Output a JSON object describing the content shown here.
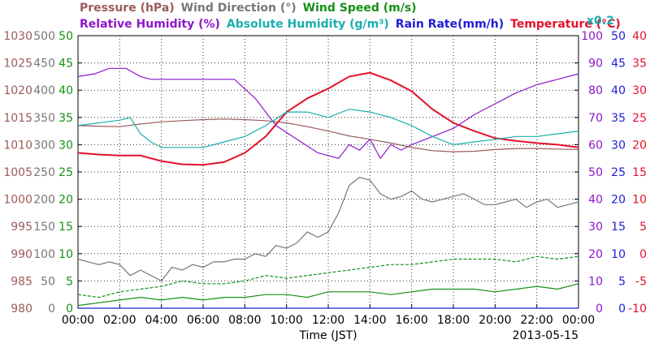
{
  "chart_data": {
    "type": "line",
    "date": "2013-05-15",
    "xlabel": "Time (JST)",
    "xlim": [
      "00:00",
      "24:00"
    ],
    "x_ticks": [
      "00:00",
      "02:00",
      "04:00",
      "06:00",
      "08:00",
      "10:00",
      "12:00",
      "14:00",
      "16:00",
      "18:00",
      "20:00",
      "22:00",
      "00:00"
    ],
    "grid": true,
    "grid_style": "dotted",
    "legend_placement": "top",
    "axes": [
      {
        "id": "pressure",
        "label": "Pressure (hPa)",
        "side": "left",
        "color": "#9b5c5c",
        "ticks": [
          "1030",
          "1025",
          "1020",
          "1015",
          "1010",
          "1005",
          "1000",
          "995",
          "990",
          "985",
          "980"
        ],
        "ylim": [
          980,
          1030
        ]
      },
      {
        "id": "wind_direction",
        "label": "Wind Direction (°)",
        "side": "left",
        "color": "#777777",
        "ticks": [
          "500",
          "450",
          "400",
          "350",
          "300",
          "250",
          "200",
          "150",
          "100",
          "50",
          "0"
        ],
        "ylim": [
          0,
          500
        ]
      },
      {
        "id": "wind_speed",
        "label": "Wind Speed (m/s)",
        "side": "left",
        "color": "#169016",
        "ticks": [
          "50",
          "45",
          "40",
          "35",
          "30",
          "25",
          "20",
          "15",
          "10",
          "5",
          "0"
        ],
        "ylim": [
          0,
          50
        ]
      },
      {
        "id": "relative_humidity",
        "label": "Relative Humidity (%)",
        "side": "right",
        "color": "#8f16c9",
        "ticks": [
          "100",
          "90",
          "80",
          "70",
          "60",
          "50",
          "40",
          "30",
          "20",
          "10",
          "0"
        ],
        "ylim": [
          0,
          100
        ]
      },
      {
        "id": "absolute_humidity",
        "label": "Absolute Humidity (g/m³)",
        "side": "right",
        "color": "#1aaeae",
        "ticks": [
          "x0.2"
        ],
        "scale_note": "x0.2"
      },
      {
        "id": "rain_rate",
        "label": "Rain Rate(mm/h)",
        "side": "right",
        "color": "#1d1dd6",
        "ticks": [
          "50",
          "45",
          "40",
          "35",
          "30",
          "25",
          "20",
          "15",
          "10",
          "5",
          "0"
        ],
        "ylim": [
          0,
          50
        ]
      },
      {
        "id": "temperature",
        "label": "Temperature (°C)",
        "side": "right",
        "color": "#e5102d",
        "ticks": [
          "40",
          "35",
          "30",
          "25",
          "20",
          "15",
          "10",
          "5",
          "0",
          "-5",
          "-10"
        ],
        "ylim": [
          -10,
          40
        ]
      }
    ],
    "legend_row1": [
      {
        "text": "Pressure (hPa)",
        "color": "#9b5c5c"
      },
      {
        "text": "Wind Direction (°)",
        "color": "#777777"
      },
      {
        "text": "Wind Speed (m/s)",
        "color": "#169016"
      }
    ],
    "legend_row2": [
      {
        "text": "Relative Humidity (%)",
        "color": "#8f16c9"
      },
      {
        "text": "Absolute Humidity (g/m³)",
        "color": "#1aaeae"
      },
      {
        "text": "Rain Rate(mm/h)",
        "color": "#1d1dd6"
      },
      {
        "text": "Temperature (°C)",
        "color": "#e5102d"
      }
    ],
    "series": [
      {
        "id": "temperature",
        "color": "#e5102d",
        "axis": "temperature",
        "x": [
          0,
          1,
          2,
          3,
          4,
          5,
          6,
          7,
          8,
          9,
          10,
          11,
          12,
          13,
          14,
          15,
          16,
          17,
          18,
          19,
          20,
          21,
          22,
          23,
          24
        ],
        "values": [
          18.5,
          18.2,
          18.0,
          18.0,
          17.0,
          16.4,
          16.3,
          16.8,
          18.5,
          21.5,
          26.0,
          28.5,
          30.3,
          32.5,
          33.2,
          31.8,
          29.8,
          26.5,
          24.0,
          22.5,
          21.2,
          20.7,
          20.3,
          20.0,
          19.5
        ]
      },
      {
        "id": "relative_humidity",
        "color": "#8f16c9",
        "axis": "relative_humidity",
        "x": [
          0,
          0.8,
          1.5,
          2.3,
          3.0,
          3.5,
          4.5,
          5.5,
          6.5,
          7.5,
          8.5,
          9.5,
          10.5,
          11.5,
          12.5,
          13.0,
          13.5,
          14.0,
          14.5,
          15.0,
          15.5,
          16.0,
          17.0,
          18.0,
          19.0,
          20.0,
          21.0,
          22.0,
          23.0,
          24.0
        ],
        "values": [
          85,
          86,
          88,
          88,
          85,
          84,
          84,
          84,
          84,
          84,
          77,
          67,
          62,
          57,
          55,
          60,
          58,
          62,
          55,
          60,
          58,
          60,
          63,
          66,
          71,
          75,
          79,
          82,
          84,
          86
        ]
      },
      {
        "id": "pressure",
        "color": "#9b5c5c",
        "axis": "pressure",
        "x": [
          0,
          1,
          2,
          3,
          4,
          5,
          6,
          7,
          8,
          9,
          10,
          11,
          12,
          13,
          14,
          15,
          16,
          17,
          18,
          19,
          20,
          21,
          22,
          23,
          24
        ],
        "values": [
          1013.5,
          1013.4,
          1013.3,
          1013.8,
          1014.2,
          1014.4,
          1014.6,
          1014.7,
          1014.6,
          1014.4,
          1014.0,
          1013.3,
          1012.5,
          1011.6,
          1011.0,
          1010.3,
          1009.5,
          1008.9,
          1008.7,
          1008.8,
          1009.1,
          1009.3,
          1009.3,
          1009.2,
          1009.1
        ]
      },
      {
        "id": "absolute_humidity",
        "color": "#1aaeae",
        "axis": "relative_humidity",
        "note": "plotted on shared scale (x0.2)",
        "x": [
          0,
          1,
          2,
          2.5,
          3,
          3.5,
          4,
          5,
          6,
          7,
          8,
          9,
          10,
          11,
          12,
          13,
          14,
          15,
          16,
          17,
          18,
          19,
          20,
          21,
          22,
          23,
          24
        ],
        "values": [
          67,
          68,
          69,
          70,
          64,
          61,
          59,
          59,
          59,
          61,
          63,
          67,
          72,
          72,
          70,
          73,
          72,
          70,
          67,
          63,
          60,
          61,
          62,
          63,
          63,
          64,
          65
        ]
      },
      {
        "id": "wind_direction",
        "color": "#777777",
        "axis": "wind_direction",
        "x": [
          0,
          0.5,
          1,
          1.5,
          2,
          2.5,
          3,
          3.5,
          4,
          4.5,
          5,
          5.5,
          6,
          6.5,
          7,
          7.5,
          8,
          8.5,
          9,
          9.5,
          10,
          10.5,
          11,
          11.5,
          12,
          12.5,
          13,
          13.5,
          14,
          14.5,
          15,
          15.5,
          16,
          16.5,
          17,
          17.5,
          18,
          18.5,
          19,
          19.5,
          20,
          20.5,
          21,
          21.5,
          22,
          22.5,
          23,
          23.5,
          24
        ],
        "values": [
          90,
          85,
          80,
          85,
          80,
          60,
          70,
          60,
          50,
          75,
          70,
          80,
          75,
          85,
          85,
          90,
          90,
          100,
          95,
          115,
          110,
          120,
          140,
          130,
          140,
          175,
          225,
          240,
          235,
          210,
          200,
          205,
          215,
          200,
          195,
          200,
          205,
          210,
          200,
          190,
          190,
          195,
          200,
          185,
          195,
          200,
          185,
          190,
          195
        ]
      },
      {
        "id": "wind_speed_max",
        "style": "dashed",
        "color": "#169016",
        "axis": "wind_speed",
        "x": [
          0,
          1,
          2,
          3,
          4,
          5,
          6,
          7,
          8,
          9,
          10,
          11,
          12,
          13,
          14,
          15,
          16,
          17,
          18,
          19,
          20,
          21,
          22,
          23,
          24
        ],
        "values": [
          2.5,
          2,
          3,
          3.5,
          4,
          5,
          4.5,
          4.5,
          5,
          6,
          5.5,
          6,
          6.5,
          7,
          7.5,
          8,
          8,
          8.5,
          9,
          9,
          9,
          8.5,
          9.5,
          9,
          9.5
        ]
      },
      {
        "id": "wind_speed_avg",
        "style": "solid",
        "color": "#169016",
        "axis": "wind_speed",
        "x": [
          0,
          1,
          2,
          3,
          4,
          5,
          6,
          7,
          8,
          9,
          10,
          11,
          12,
          13,
          14,
          15,
          16,
          17,
          18,
          19,
          20,
          21,
          22,
          23,
          24
        ],
        "values": [
          0.5,
          1,
          1.5,
          2,
          1.5,
          2,
          1.5,
          2,
          2,
          2.5,
          2.5,
          2,
          3,
          3,
          3,
          2.5,
          3,
          3.5,
          3.5,
          3.5,
          3,
          3.5,
          4,
          3.5,
          4.5
        ]
      },
      {
        "id": "rain_rate",
        "color": "#1d1dd6",
        "axis": "rain_rate",
        "x": [
          0,
          24
        ],
        "values": [
          0,
          0
        ]
      }
    ]
  }
}
